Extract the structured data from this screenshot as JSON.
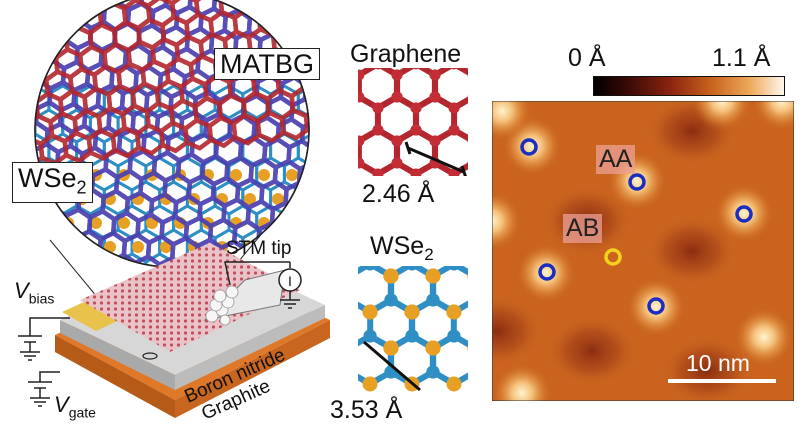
{
  "schematic": {
    "label_matbg": "MATBG",
    "label_wse2_main": "WSe",
    "label_wse2_sub": "2",
    "label_stm_tip": "STM tip",
    "label_vbias_main": "V",
    "label_vbias_sub": "bias",
    "label_vgate_main": "V",
    "label_vgate_sub": "gate",
    "label_boron_nitride": "Boron nitride",
    "label_graphite": "Graphite"
  },
  "lattices": {
    "graphene_title": "Graphene",
    "graphene_constant": "2.46 Å",
    "wse2_title_main": "WSe",
    "wse2_title_sub": "2",
    "wse2_constant": "3.53 Å"
  },
  "topography": {
    "colorbar_min": "0 Å",
    "colorbar_max": "1.1 Å",
    "label_aa": "AA",
    "label_ab": "AB",
    "scalebar_label": "10 nm"
  },
  "colors": {
    "graphene_atom": "#b3262d",
    "wse2_w_atom": "#2f8fc4",
    "wse2_se_atom": "#e8a024",
    "marker_aa": "#1a2fbf",
    "marker_ab": "#f2d21c",
    "map_base": "#c9631e"
  }
}
